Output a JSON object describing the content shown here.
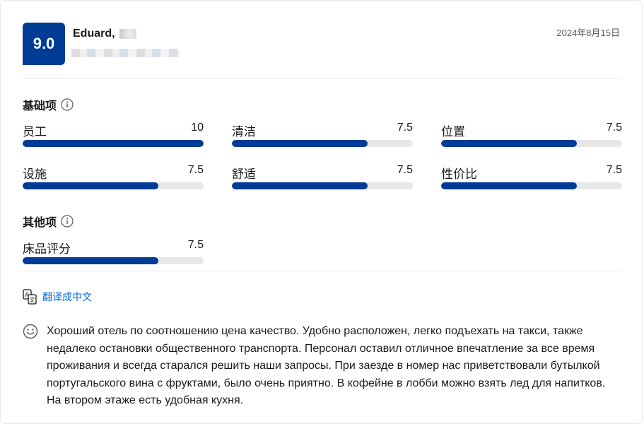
{
  "review": {
    "score": "9.0",
    "reviewer_name": "Eduard,",
    "date": "2024年8月15日"
  },
  "base_section": {
    "title": "基础项",
    "items": [
      {
        "label": "员工",
        "value": "10",
        "fraction": 1.0
      },
      {
        "label": "清洁",
        "value": "7.5",
        "fraction": 0.75
      },
      {
        "label": "位置",
        "value": "7.5",
        "fraction": 0.75
      },
      {
        "label": "设施",
        "value": "7.5",
        "fraction": 0.75
      },
      {
        "label": "舒适",
        "value": "7.5",
        "fraction": 0.75
      },
      {
        "label": "性价比",
        "value": "7.5",
        "fraction": 0.75
      }
    ]
  },
  "other_section": {
    "title": "其他项",
    "items": [
      {
        "label": "床品评分",
        "value": "7.5",
        "fraction": 0.75
      }
    ]
  },
  "translate": {
    "label": "翻译成中文"
  },
  "review_text": "Хороший отель по соотношению цена качество. Удобно расположен, легко подъехать на такси, также недалеко остановки общественного транспорта. Персонал оставил отличное впечатление за все время проживания и всегда старался решить наши запросы. При заезде в номер нас приветствовали бутылкой португальского вина с фруктами, было очень приятно. В кофейне в лобби можно взять лед для напитков. На втором этаже есть удобная кухня.",
  "colors": {
    "accent": "#003b95",
    "link": "#006ce4",
    "track": "#e7e7e7"
  },
  "icons": [
    "info-icon",
    "translate-icon",
    "smiley-icon"
  ]
}
